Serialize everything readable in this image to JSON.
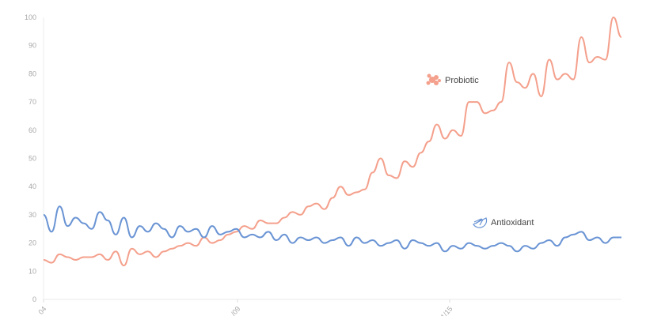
{
  "chart_data": {
    "type": "line",
    "title": "",
    "xlabel": "",
    "ylabel": "",
    "ylim": [
      0,
      100
    ],
    "yticks": [
      0,
      10,
      20,
      30,
      40,
      50,
      60,
      70,
      80,
      90,
      100
    ],
    "xtick_labels": [
      "04",
      "/09",
      "1/15"
    ],
    "grid": false,
    "legend": "inline labels",
    "series": [
      {
        "name": "Probiotic",
        "color": "#f4a08c",
        "icon": "bacteria-icon",
        "values": [
          14,
          13,
          16,
          15,
          14,
          15,
          15,
          16,
          14,
          17,
          12,
          18,
          16,
          17,
          15,
          17,
          18,
          19,
          20,
          19,
          22,
          20,
          21,
          23,
          24,
          26,
          25,
          28,
          27,
          27,
          29,
          31,
          30,
          33,
          34,
          32,
          36,
          40,
          37,
          38,
          39,
          45,
          50,
          44,
          43,
          49,
          47,
          52,
          56,
          62,
          57,
          60,
          58,
          70,
          70,
          66,
          67,
          70,
          84,
          77,
          75,
          80,
          72,
          85,
          78,
          80,
          78,
          93,
          84,
          86,
          85,
          100,
          93
        ]
      },
      {
        "name": "Antioxidant",
        "color": "#6a94d4",
        "icon": "citrus-icon",
        "values": [
          30,
          24,
          33,
          26,
          29,
          27,
          25,
          31,
          28,
          23,
          29,
          22,
          26,
          24,
          27,
          25,
          22,
          26,
          24,
          25,
          22,
          26,
          23,
          24,
          25,
          22,
          23,
          22,
          24,
          21,
          23,
          20,
          22,
          21,
          22,
          20,
          21,
          22,
          19,
          22,
          20,
          21,
          19,
          20,
          21,
          18,
          21,
          20,
          19,
          20,
          17,
          19,
          18,
          20,
          19,
          18,
          19,
          20,
          19,
          17,
          19,
          18,
          20,
          21,
          19,
          22,
          23,
          24,
          21,
          22,
          20,
          22,
          22
        ]
      }
    ],
    "annotations": [
      "Probiotic",
      "Antioxidant"
    ]
  }
}
